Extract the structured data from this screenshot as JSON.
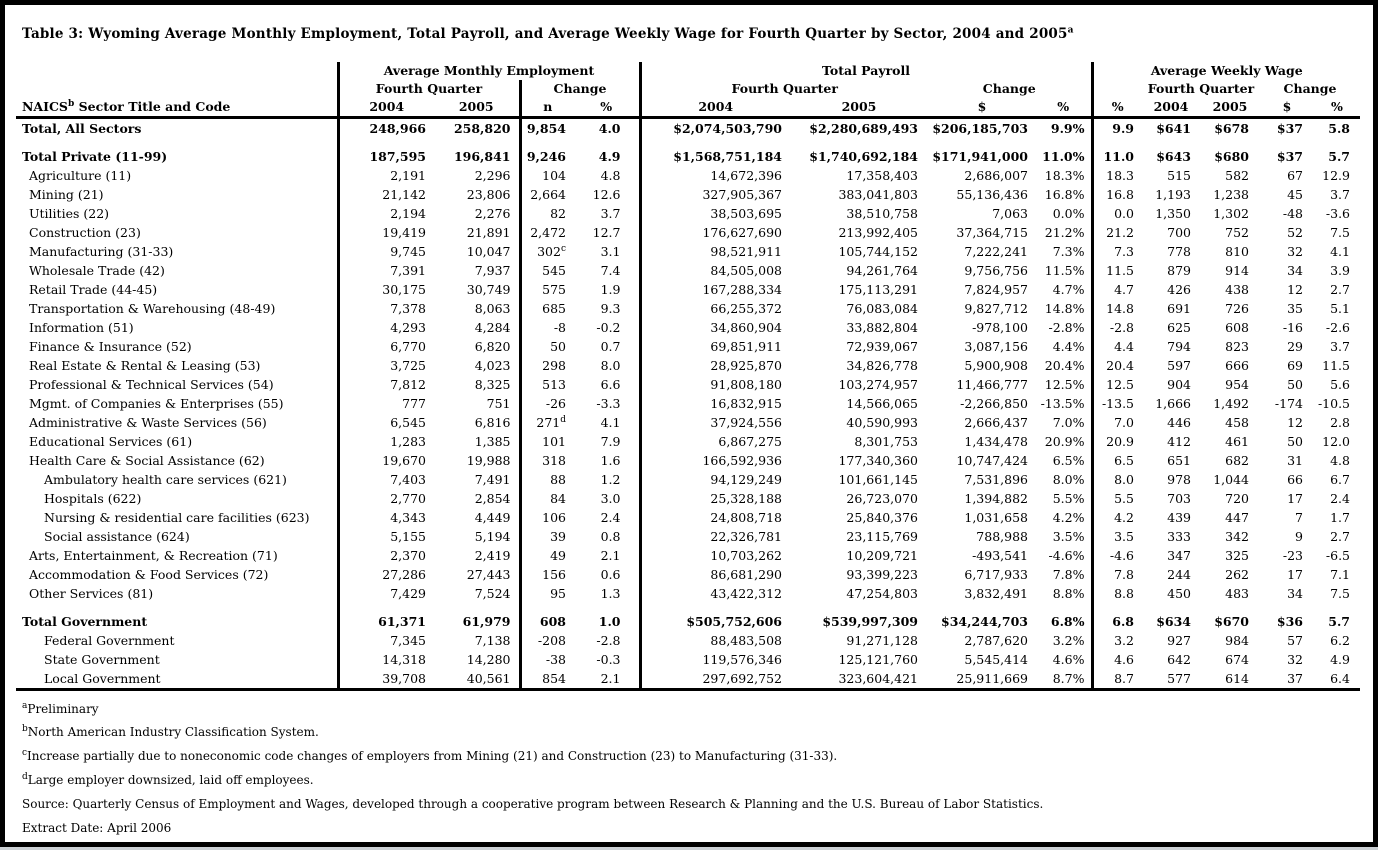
{
  "page": {
    "title": "Table 3: Wyoming Average Monthly Employment, Total Payroll, and Average Weekly Wage for Fourth Quarter by Sector, 2004 and 2005",
    "title_superscript": "a"
  },
  "table": {
    "header_label": {
      "pre": "NAICS",
      "sup": "b",
      "post": " Sector Title and Code"
    },
    "groups": [
      {
        "label": "Average Monthly Employment"
      },
      {
        "label": "Total Payroll"
      },
      {
        "label": "Average Weekly Wage"
      }
    ],
    "subgroups": {
      "fourth_quarter": "Fourth Quarter",
      "change": "Change"
    },
    "columns": [
      "2004",
      "2005",
      "n",
      "%",
      "2004",
      "2005",
      "$",
      "%",
      "%",
      "2004",
      "2005",
      "$",
      "%"
    ],
    "rows": [
      {
        "label": "Total, All Sectors",
        "indent": 0,
        "bold": true,
        "cells": [
          "248,966",
          "258,820",
          "9,854",
          "4.0",
          "$2,074,503,790",
          "$2,280,689,493",
          "$206,185,703",
          "9.9%",
          "9.9",
          "$641",
          "$678",
          "$37",
          "5.8"
        ]
      },
      {
        "label": "Total Private (11-99)",
        "indent": 0,
        "bold": true,
        "spacer_before": true,
        "cells": [
          "187,595",
          "196,841",
          "9,246",
          "4.9",
          "$1,568,751,184",
          "$1,740,692,184",
          "$171,941,000",
          "11.0%",
          "11.0",
          "$643",
          "$680",
          "$37",
          "5.7"
        ]
      },
      {
        "label": "Agriculture (11)",
        "indent": 1,
        "bold": false,
        "cells": [
          "2,191",
          "2,296",
          "104",
          "4.8",
          "14,672,396",
          "17,358,403",
          "2,686,007",
          "18.3%",
          "18.3",
          "515",
          "582",
          "67",
          "12.9"
        ]
      },
      {
        "label": "Mining (21)",
        "indent": 1,
        "bold": false,
        "cells": [
          "21,142",
          "23,806",
          "2,664",
          "12.6",
          "327,905,367",
          "383,041,803",
          "55,136,436",
          "16.8%",
          "16.8",
          "1,193",
          "1,238",
          "45",
          "3.7"
        ]
      },
      {
        "label": "Utilities (22)",
        "indent": 1,
        "bold": false,
        "cells": [
          "2,194",
          "2,276",
          "82",
          "3.7",
          "38,503,695",
          "38,510,758",
          "7,063",
          "0.0%",
          "0.0",
          "1,350",
          "1,302",
          "-48",
          "-3.6"
        ]
      },
      {
        "label": "Construction (23)",
        "indent": 1,
        "bold": false,
        "cells": [
          "19,419",
          "21,891",
          "2,472",
          "12.7",
          "176,627,690",
          "213,992,405",
          "37,364,715",
          "21.2%",
          "21.2",
          "700",
          "752",
          "52",
          "7.5"
        ]
      },
      {
        "label": "Manufacturing (31-33)",
        "indent": 1,
        "bold": false,
        "sups": {
          "2": "c"
        },
        "cells": [
          "9,745",
          "10,047",
          "302",
          "3.1",
          "98,521,911",
          "105,744,152",
          "7,222,241",
          "7.3%",
          "7.3",
          "778",
          "810",
          "32",
          "4.1"
        ]
      },
      {
        "label": "Wholesale Trade (42)",
        "indent": 1,
        "bold": false,
        "cells": [
          "7,391",
          "7,937",
          "545",
          "7.4",
          "84,505,008",
          "94,261,764",
          "9,756,756",
          "11.5%",
          "11.5",
          "879",
          "914",
          "34",
          "3.9"
        ]
      },
      {
        "label": "Retail Trade (44-45)",
        "indent": 1,
        "bold": false,
        "cells": [
          "30,175",
          "30,749",
          "575",
          "1.9",
          "167,288,334",
          "175,113,291",
          "7,824,957",
          "4.7%",
          "4.7",
          "426",
          "438",
          "12",
          "2.7"
        ]
      },
      {
        "label": "Transportation & Warehousing (48-49)",
        "indent": 1,
        "bold": false,
        "cells": [
          "7,378",
          "8,063",
          "685",
          "9.3",
          "66,255,372",
          "76,083,084",
          "9,827,712",
          "14.8%",
          "14.8",
          "691",
          "726",
          "35",
          "5.1"
        ]
      },
      {
        "label": "Information (51)",
        "indent": 1,
        "bold": false,
        "cells": [
          "4,293",
          "4,284",
          "-8",
          "-0.2",
          "34,860,904",
          "33,882,804",
          "-978,100",
          "-2.8%",
          "-2.8",
          "625",
          "608",
          "-16",
          "-2.6"
        ]
      },
      {
        "label": "Finance & Insurance (52)",
        "indent": 1,
        "bold": false,
        "cells": [
          "6,770",
          "6,820",
          "50",
          "0.7",
          "69,851,911",
          "72,939,067",
          "3,087,156",
          "4.4%",
          "4.4",
          "794",
          "823",
          "29",
          "3.7"
        ]
      },
      {
        "label": "Real Estate & Rental & Leasing (53)",
        "indent": 1,
        "bold": false,
        "cells": [
          "3,725",
          "4,023",
          "298",
          "8.0",
          "28,925,870",
          "34,826,778",
          "5,900,908",
          "20.4%",
          "20.4",
          "597",
          "666",
          "69",
          "11.5"
        ]
      },
      {
        "label": "Professional & Technical Services (54)",
        "indent": 1,
        "bold": false,
        "cells": [
          "7,812",
          "8,325",
          "513",
          "6.6",
          "91,808,180",
          "103,274,957",
          "11,466,777",
          "12.5%",
          "12.5",
          "904",
          "954",
          "50",
          "5.6"
        ]
      },
      {
        "label": "Mgmt. of Companies & Enterprises (55)",
        "indent": 1,
        "bold": false,
        "cells": [
          "777",
          "751",
          "-26",
          "-3.3",
          "16,832,915",
          "14,566,065",
          "-2,266,850",
          "-13.5%",
          "-13.5",
          "1,666",
          "1,492",
          "-174",
          "-10.5"
        ]
      },
      {
        "label": "Administrative & Waste Services (56)",
        "indent": 1,
        "bold": false,
        "sups": {
          "2": "d"
        },
        "cells": [
          "6,545",
          "6,816",
          "271",
          "4.1",
          "37,924,556",
          "40,590,993",
          "2,666,437",
          "7.0%",
          "7.0",
          "446",
          "458",
          "12",
          "2.8"
        ]
      },
      {
        "label": "Educational Services (61)",
        "indent": 1,
        "bold": false,
        "cells": [
          "1,283",
          "1,385",
          "101",
          "7.9",
          "6,867,275",
          "8,301,753",
          "1,434,478",
          "20.9%",
          "20.9",
          "412",
          "461",
          "50",
          "12.0"
        ]
      },
      {
        "label": "Health Care & Social Assistance (62)",
        "indent": 1,
        "bold": false,
        "cells": [
          "19,670",
          "19,988",
          "318",
          "1.6",
          "166,592,936",
          "177,340,360",
          "10,747,424",
          "6.5%",
          "6.5",
          "651",
          "682",
          "31",
          "4.8"
        ]
      },
      {
        "label": "Ambulatory health care services (621)",
        "indent": 2,
        "bold": false,
        "cells": [
          "7,403",
          "7,491",
          "88",
          "1.2",
          "94,129,249",
          "101,661,145",
          "7,531,896",
          "8.0%",
          "8.0",
          "978",
          "1,044",
          "66",
          "6.7"
        ]
      },
      {
        "label": "Hospitals (622)",
        "indent": 2,
        "bold": false,
        "cells": [
          "2,770",
          "2,854",
          "84",
          "3.0",
          "25,328,188",
          "26,723,070",
          "1,394,882",
          "5.5%",
          "5.5",
          "703",
          "720",
          "17",
          "2.4"
        ]
      },
      {
        "label": "Nursing & residential care facilities (623)",
        "indent": 2,
        "bold": false,
        "cells": [
          "4,343",
          "4,449",
          "106",
          "2.4",
          "24,808,718",
          "25,840,376",
          "1,031,658",
          "4.2%",
          "4.2",
          "439",
          "447",
          "7",
          "1.7"
        ]
      },
      {
        "label": "Social assistance (624)",
        "indent": 2,
        "bold": false,
        "cells": [
          "5,155",
          "5,194",
          "39",
          "0.8",
          "22,326,781",
          "23,115,769",
          "788,988",
          "3.5%",
          "3.5",
          "333",
          "342",
          "9",
          "2.7"
        ]
      },
      {
        "label": "Arts, Entertainment, & Recreation (71)",
        "indent": 1,
        "bold": false,
        "cells": [
          "2,370",
          "2,419",
          "49",
          "2.1",
          "10,703,262",
          "10,209,721",
          "-493,541",
          "-4.6%",
          "-4.6",
          "347",
          "325",
          "-23",
          "-6.5"
        ]
      },
      {
        "label": "Accommodation & Food Services (72)",
        "indent": 1,
        "bold": false,
        "cells": [
          "27,286",
          "27,443",
          "156",
          "0.6",
          "86,681,290",
          "93,399,223",
          "6,717,933",
          "7.8%",
          "7.8",
          "244",
          "262",
          "17",
          "7.1"
        ]
      },
      {
        "label": "Other Services (81)",
        "indent": 1,
        "bold": false,
        "cells": [
          "7,429",
          "7,524",
          "95",
          "1.3",
          "43,422,312",
          "47,254,803",
          "3,832,491",
          "8.8%",
          "8.8",
          "450",
          "483",
          "34",
          "7.5"
        ]
      },
      {
        "label": "Total Government",
        "indent": 0,
        "bold": true,
        "spacer_before": true,
        "cells": [
          "61,371",
          "61,979",
          "608",
          "1.0",
          "$505,752,606",
          "$539,997,309",
          "$34,244,703",
          "6.8%",
          "6.8",
          "$634",
          "$670",
          "$36",
          "5.7"
        ]
      },
      {
        "label": "Federal Government",
        "indent": 2,
        "bold": false,
        "cells": [
          "7,345",
          "7,138",
          "-208",
          "-2.8",
          "88,483,508",
          "91,271,128",
          "2,787,620",
          "3.2%",
          "3.2",
          "927",
          "984",
          "57",
          "6.2"
        ]
      },
      {
        "label": "State Government",
        "indent": 2,
        "bold": false,
        "cells": [
          "14,318",
          "14,280",
          "-38",
          "-0.3",
          "119,576,346",
          "125,121,760",
          "5,545,414",
          "4.6%",
          "4.6",
          "642",
          "674",
          "32",
          "4.9"
        ]
      },
      {
        "label": "Local Government",
        "indent": 2,
        "bold": false,
        "cells": [
          "39,708",
          "40,561",
          "854",
          "2.1",
          "297,692,752",
          "323,604,421",
          "25,911,669",
          "8.7%",
          "8.7",
          "577",
          "614",
          "37",
          "6.4"
        ]
      }
    ]
  },
  "footnotes": [
    {
      "sup": "a",
      "text": "Preliminary"
    },
    {
      "sup": "b",
      "text": "North American Industry Classification System."
    },
    {
      "sup": "c",
      "text": "Increase partially due to noneconomic code changes of employers from Mining (21) and Construction (23) to Manufacturing  (31-33)."
    },
    {
      "sup": "d",
      "text": "Large employer downsized, laid off employees."
    },
    {
      "sup": "",
      "text": "Source: Quarterly Census of Employment and Wages, developed through a cooperative program between Research & Planning and the U.S. Bureau of Labor Statistics."
    },
    {
      "sup": "",
      "text": "Extract Date: April 2006"
    }
  ]
}
